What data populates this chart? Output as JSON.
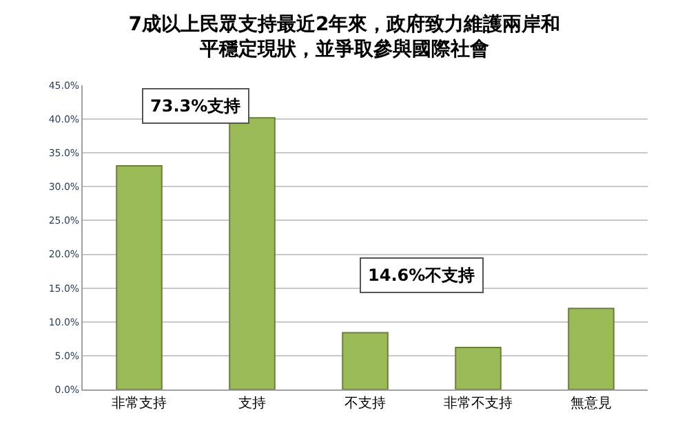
{
  "chart_data": {
    "type": "bar",
    "title": "7成以上民眾支持最近2年來，政府致力維護兩岸和平穩定現狀，並爭取參與國際社會",
    "categories": [
      "非常支持",
      "支持",
      "不支持",
      "非常不支持",
      "無意見"
    ],
    "values": [
      33.1,
      40.2,
      8.4,
      6.2,
      12.0
    ],
    "color": "#9bbb59",
    "ylim": [
      0,
      45
    ],
    "yticks": [
      {
        "value": 0,
        "label": "0.0%"
      },
      {
        "value": 5,
        "label": "5.0%"
      },
      {
        "value": 10,
        "label": "10.0%"
      },
      {
        "value": 15,
        "label": "15.0%"
      },
      {
        "value": 20,
        "label": "20.0%"
      },
      {
        "value": 25,
        "label": "25.0%"
      },
      {
        "value": 30,
        "label": "30.0%"
      },
      {
        "value": 35,
        "label": "35.0%"
      },
      {
        "value": 40,
        "label": "40.0%"
      },
      {
        "value": 45,
        "label": "45.0%"
      }
    ],
    "grid": "y",
    "annotations": [
      "73.3%支持",
      "14.6%不支持"
    ]
  }
}
